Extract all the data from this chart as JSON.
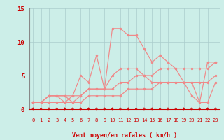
{
  "xlabel": "Vent moyen/en rafales ( km/h )",
  "bg_color": "#cceee8",
  "line_color": "#f08888",
  "grid_color": "#aacccc",
  "axis_color": "#cc0000",
  "tick_color": "#cc0000",
  "xlim": [
    -0.5,
    23.5
  ],
  "ylim": [
    0,
    15
  ],
  "yticks": [
    0,
    5,
    10,
    15
  ],
  "xticks": [
    0,
    1,
    2,
    3,
    4,
    5,
    6,
    7,
    8,
    9,
    10,
    11,
    12,
    13,
    14,
    15,
    16,
    17,
    18,
    19,
    20,
    21,
    22,
    23
  ],
  "hours": [
    0,
    1,
    2,
    3,
    4,
    5,
    6,
    7,
    8,
    9,
    10,
    11,
    12,
    13,
    14,
    15,
    16,
    17,
    18,
    19,
    20,
    21,
    22,
    23
  ],
  "gust_wind": [
    1,
    1,
    2,
    2,
    1,
    2,
    5,
    4,
    8,
    3,
    12,
    12,
    11,
    11,
    9,
    7,
    8,
    7,
    6,
    4,
    2,
    1,
    7,
    7
  ],
  "mean_wind": [
    1,
    1,
    2,
    2,
    2,
    1,
    2,
    3,
    3,
    3,
    5,
    6,
    6,
    6,
    5,
    4,
    4,
    4,
    4,
    4,
    4,
    1,
    1,
    4
  ],
  "line1": [
    1,
    1,
    2,
    2,
    2,
    2,
    2,
    3,
    3,
    3,
    3,
    4,
    4,
    5,
    5,
    5,
    6,
    6,
    6,
    6,
    6,
    6,
    6,
    7
  ],
  "line2": [
    1,
    1,
    1,
    1,
    1,
    1,
    1,
    2,
    2,
    2,
    2,
    2,
    3,
    3,
    3,
    3,
    4,
    4,
    4,
    4,
    4,
    4,
    4,
    5
  ]
}
